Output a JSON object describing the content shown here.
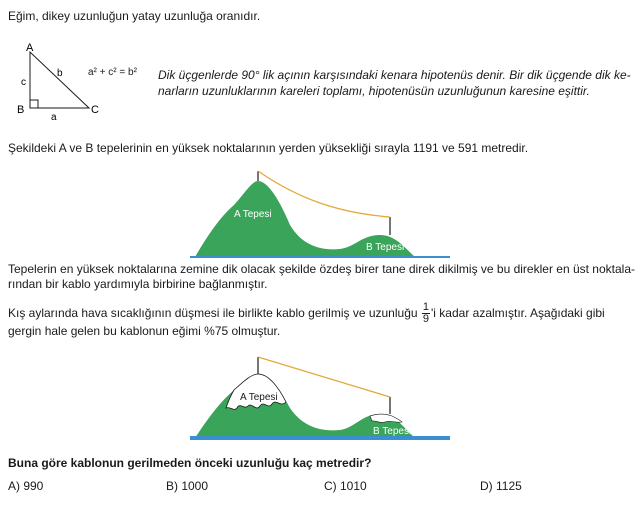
{
  "definition_line": "Eğim, dikey uzunluğun yatay uzunluğa oranıdır.",
  "triangle": {
    "vertex_a": "A",
    "vertex_b": "B",
    "vertex_c": "C",
    "side_a": "a",
    "side_b": "b",
    "side_c": "c",
    "formula": "a² + c² = b²"
  },
  "pythagoras_note_line1": "Dik üçgenlerde 90° lik açının karşısındaki kenara hipotenüs denir. Bir dik üçgende dik ke-",
  "pythagoras_note_line2": "narların uzunluklarının kareleri toplamı, hipotenüsün uzunluğunun karesine eşittir.",
  "heights_sentence": "Şekildeki A ve B tepelerinin en yüksek noktalarının yerden yüksekliği sırayla 1191 ve 591 metredir.",
  "figure1": {
    "label_a": "A Tepesi",
    "label_b": "B Tepesi"
  },
  "poles_line1": "Tepelerin en yüksek noktalarına zemine dik olacak şekilde özdeş birer tane direk dikilmiş ve bu direkler en üst noktala-",
  "poles_line2": "rından bir kablo yardımıyla birbirine bağlanmıştır.",
  "winter_part1": "Kış aylarında hava sıcaklığının düşmesi ile birlikte kablo gerilmiş ve uzunluğu",
  "fraction_numerator": "1",
  "fraction_denominator": "9",
  "winter_part2": "'i kadar azalmıştır. Aşağıdaki gibi",
  "winter_line2": "gergin hale gelen bu kablonun eğimi %75 olmuştur.",
  "figure2": {
    "label_a": "A Tepesi",
    "label_b": "B Tepesi"
  },
  "question": "Buna göre kablonun gerilmeden önceki uzunluğu kaç metredir?",
  "options": [
    "A) 990",
    "B) 1000",
    "C) 1010",
    "D) 1125"
  ],
  "colors": {
    "hill_green": "#3aa45a",
    "water_blue": "#3b8fd0",
    "cable_orange": "#e3a83a",
    "snow": "#ffffff"
  }
}
